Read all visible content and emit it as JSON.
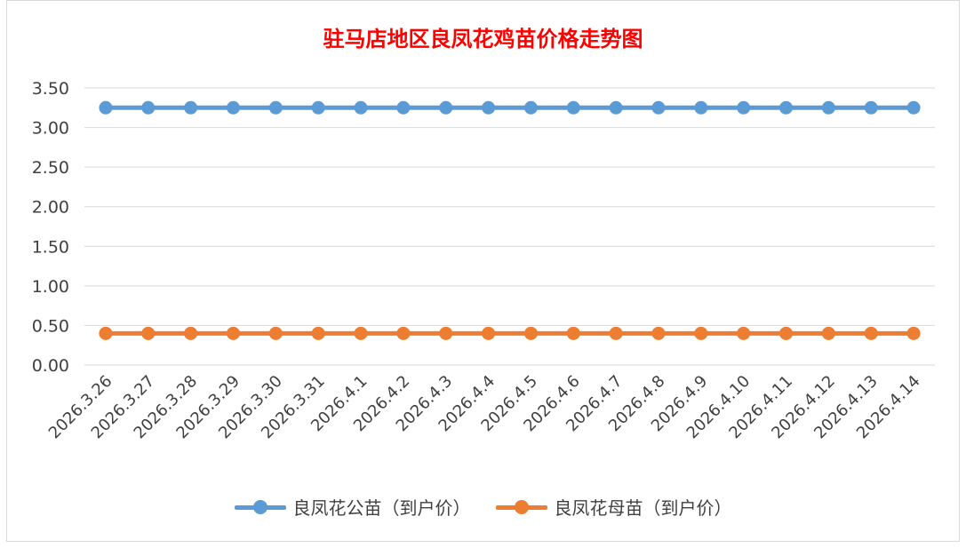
{
  "chart_data": {
    "type": "line",
    "title": "驻马店地区良凤花鸡苗价格走势图",
    "categories": [
      "2026.3.26",
      "2026.3.27",
      "2026.3.28",
      "2026.3.29",
      "2026.3.30",
      "2026.3.31",
      "2026.4.1",
      "2026.4.2",
      "2026.4.3",
      "2026.4.4",
      "2026.4.5",
      "2026.4.6",
      "2026.4.7",
      "2026.4.8",
      "2026.4.9",
      "2026.4.10",
      "2026.4.11",
      "2026.4.12",
      "2026.4.13",
      "2026.4.14"
    ],
    "series": [
      {
        "name": "良凤花公苗（到户价）",
        "color": "#5b9bd5",
        "values": [
          3.25,
          3.25,
          3.25,
          3.25,
          3.25,
          3.25,
          3.25,
          3.25,
          3.25,
          3.25,
          3.25,
          3.25,
          3.25,
          3.25,
          3.25,
          3.25,
          3.25,
          3.25,
          3.25,
          3.25
        ]
      },
      {
        "name": "良凤花母苗（到户价）",
        "color": "#ed7d31",
        "values": [
          0.4,
          0.4,
          0.4,
          0.4,
          0.4,
          0.4,
          0.4,
          0.4,
          0.4,
          0.4,
          0.4,
          0.4,
          0.4,
          0.4,
          0.4,
          0.4,
          0.4,
          0.4,
          0.4,
          0.4
        ]
      }
    ],
    "yticks": [
      "0.00",
      "0.50",
      "1.00",
      "1.50",
      "2.00",
      "2.50",
      "3.00",
      "3.50"
    ],
    "ylim": [
      0,
      3.5
    ],
    "grid": true,
    "legend": "bottom-center"
  }
}
